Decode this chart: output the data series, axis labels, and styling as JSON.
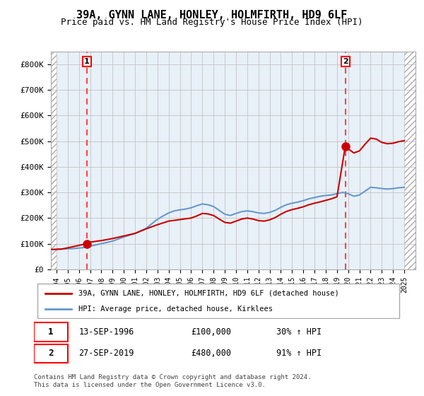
{
  "title": "39A, GYNN LANE, HONLEY, HOLMFIRTH, HD9 6LF",
  "subtitle": "Price paid vs. HM Land Registry's House Price Index (HPI)",
  "xlabel": "",
  "ylabel": "",
  "ylim": [
    0,
    850000
  ],
  "yticks": [
    0,
    100000,
    200000,
    300000,
    400000,
    500000,
    600000,
    700000,
    800000
  ],
  "ytick_labels": [
    "£0",
    "£100K",
    "£200K",
    "£300K",
    "£400K",
    "£500K",
    "£600K",
    "£700K",
    "£800K"
  ],
  "hpi_color": "#6699cc",
  "price_color": "#cc0000",
  "dashed_line_color": "#ff4444",
  "background_color": "#ffffff",
  "plot_bg_color": "#e8f0f8",
  "hatch_color": "#cccccc",
  "grid_color": "#bbbbbb",
  "sale1_year": 1996.71,
  "sale1_price": 100000,
  "sale2_year": 2019.74,
  "sale2_price": 480000,
  "xlim_left": 1993.5,
  "xlim_right": 2026.0,
  "xticks": [
    1994,
    1995,
    1996,
    1997,
    1998,
    1999,
    2000,
    2001,
    2002,
    2003,
    2004,
    2005,
    2006,
    2007,
    2008,
    2009,
    2010,
    2011,
    2012,
    2013,
    2014,
    2015,
    2016,
    2017,
    2018,
    2019,
    2020,
    2021,
    2022,
    2023,
    2024,
    2025
  ],
  "legend_label1": "39A, GYNN LANE, HONLEY, HOLMFIRTH, HD9 6LF (detached house)",
  "legend_label2": "HPI: Average price, detached house, Kirklees",
  "annotation1_label": "1",
  "annotation1_date": "13-SEP-1996",
  "annotation1_price": "£100,000",
  "annotation1_hpi": "30% ↑ HPI",
  "annotation2_label": "2",
  "annotation2_date": "27-SEP-2019",
  "annotation2_price": "£480,000",
  "annotation2_hpi": "91% ↑ HPI",
  "footer": "Contains HM Land Registry data © Crown copyright and database right 2024.\nThis data is licensed under the Open Government Licence v3.0.",
  "hpi_data_x": [
    1993.5,
    1994.0,
    1994.5,
    1995.0,
    1995.5,
    1996.0,
    1996.5,
    1997.0,
    1997.5,
    1998.0,
    1998.5,
    1999.0,
    1999.5,
    2000.0,
    2000.5,
    2001.0,
    2001.5,
    2002.0,
    2002.5,
    2003.0,
    2003.5,
    2004.0,
    2004.5,
    2005.0,
    2005.5,
    2006.0,
    2006.5,
    2007.0,
    2007.5,
    2008.0,
    2008.5,
    2009.0,
    2009.5,
    2010.0,
    2010.5,
    2011.0,
    2011.5,
    2012.0,
    2012.5,
    2013.0,
    2013.5,
    2014.0,
    2014.5,
    2015.0,
    2015.5,
    2016.0,
    2016.5,
    2017.0,
    2017.5,
    2018.0,
    2018.5,
    2019.0,
    2019.5,
    2020.0,
    2020.5,
    2021.0,
    2021.5,
    2022.0,
    2022.5,
    2023.0,
    2023.5,
    2024.0,
    2024.5,
    2025.0
  ],
  "hpi_data_y": [
    77000,
    78000,
    79000,
    80000,
    81000,
    83000,
    85000,
    90000,
    95000,
    100000,
    105000,
    110000,
    118000,
    126000,
    133000,
    140000,
    150000,
    160000,
    178000,
    195000,
    208000,
    220000,
    228000,
    232000,
    235000,
    240000,
    248000,
    255000,
    252000,
    245000,
    230000,
    215000,
    210000,
    218000,
    225000,
    228000,
    225000,
    220000,
    218000,
    222000,
    230000,
    242000,
    252000,
    258000,
    262000,
    268000,
    275000,
    280000,
    285000,
    288000,
    290000,
    295000,
    300000,
    295000,
    285000,
    290000,
    305000,
    320000,
    318000,
    315000,
    313000,
    315000,
    318000,
    320000
  ],
  "price_data_x": [
    1993.5,
    1994.5,
    1996.71,
    1997.0,
    1998.0,
    1999.0,
    2000.0,
    2001.0,
    2002.0,
    2003.0,
    2004.0,
    2005.0,
    2006.0,
    2006.5,
    2007.0,
    2007.5,
    2008.0,
    2008.5,
    2009.0,
    2009.5,
    2010.0,
    2010.5,
    2011.0,
    2011.5,
    2012.0,
    2012.5,
    2013.0,
    2013.5,
    2014.0,
    2014.5,
    2015.0,
    2015.5,
    2016.0,
    2016.5,
    2017.0,
    2017.5,
    2018.0,
    2018.5,
    2019.0,
    2019.74,
    2020.0,
    2020.5,
    2021.0,
    2021.5,
    2022.0,
    2022.5,
    2023.0,
    2023.5,
    2024.0,
    2024.5,
    2025.0
  ],
  "price_data_y": [
    77000,
    79000,
    100000,
    106000,
    112000,
    120000,
    130000,
    140000,
    158000,
    174000,
    188000,
    194000,
    200000,
    208000,
    218000,
    216000,
    210000,
    196000,
    183000,
    180000,
    188000,
    196000,
    200000,
    196000,
    190000,
    188000,
    193000,
    202000,
    215000,
    226000,
    233000,
    238000,
    244000,
    252000,
    258000,
    263000,
    269000,
    275000,
    283000,
    480000,
    470000,
    454000,
    462000,
    488000,
    512000,
    508000,
    495000,
    490000,
    492000,
    498000,
    502000
  ]
}
